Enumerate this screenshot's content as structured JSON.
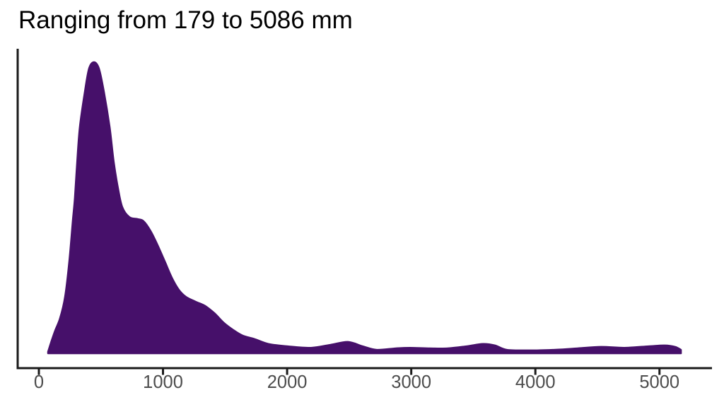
{
  "chart_data": {
    "type": "area",
    "subtype": "density",
    "title": "Ranging from 179 to 5086 mm",
    "xlabel": "",
    "ylabel": "",
    "x_unit": "mm",
    "data_min": 179,
    "data_max": 5086,
    "xlim": [
      0,
      5425
    ],
    "grid": false,
    "legend": false,
    "x_ticks": [
      0,
      1000,
      2000,
      3000,
      4000,
      5000
    ],
    "x_tick_labels": [
      "0",
      "1000",
      "2000",
      "3000",
      "4000",
      "5000"
    ],
    "y_axis_labels_shown": false,
    "colors": {
      "fill": "#46106a",
      "stroke": "#46106a",
      "axis_line": "#1a1a1a",
      "tick_mark": "#1a1a1a",
      "tick_label": "#4d4d4d",
      "title": "#000000",
      "background": "#ffffff"
    },
    "series": [
      {
        "name": "density",
        "peak_x_mm": 444,
        "y_normalized_to_peak": true,
        "x": [
          74,
          97,
          131,
          171,
          211,
          245,
          273,
          290,
          308,
          330,
          370,
          404,
          444,
          484,
          524,
          570,
          604,
          638,
          672,
          729,
          797,
          843,
          900,
          957,
          1014,
          1071,
          1128,
          1185,
          1264,
          1338,
          1413,
          1492,
          1566,
          1641,
          1737,
          1851,
          2005,
          2193,
          2347,
          2490,
          2609,
          2723,
          2877,
          2991,
          3150,
          3293,
          3446,
          3577,
          3674,
          3771,
          3959,
          4147,
          4341,
          4529,
          4717,
          4911,
          5042,
          5127,
          5173
        ],
        "y": [
          0.005,
          0.036,
          0.078,
          0.121,
          0.194,
          0.316,
          0.454,
          0.534,
          0.655,
          0.777,
          0.898,
          0.978,
          1.0,
          0.978,
          0.898,
          0.777,
          0.655,
          0.566,
          0.502,
          0.468,
          0.461,
          0.454,
          0.42,
          0.371,
          0.316,
          0.26,
          0.218,
          0.194,
          0.177,
          0.163,
          0.138,
          0.104,
          0.08,
          0.061,
          0.049,
          0.032,
          0.024,
          0.019,
          0.029,
          0.039,
          0.024,
          0.012,
          0.017,
          0.019,
          0.017,
          0.017,
          0.024,
          0.032,
          0.027,
          0.012,
          0.01,
          0.012,
          0.017,
          0.022,
          0.019,
          0.024,
          0.027,
          0.022,
          0.012
        ]
      }
    ]
  }
}
